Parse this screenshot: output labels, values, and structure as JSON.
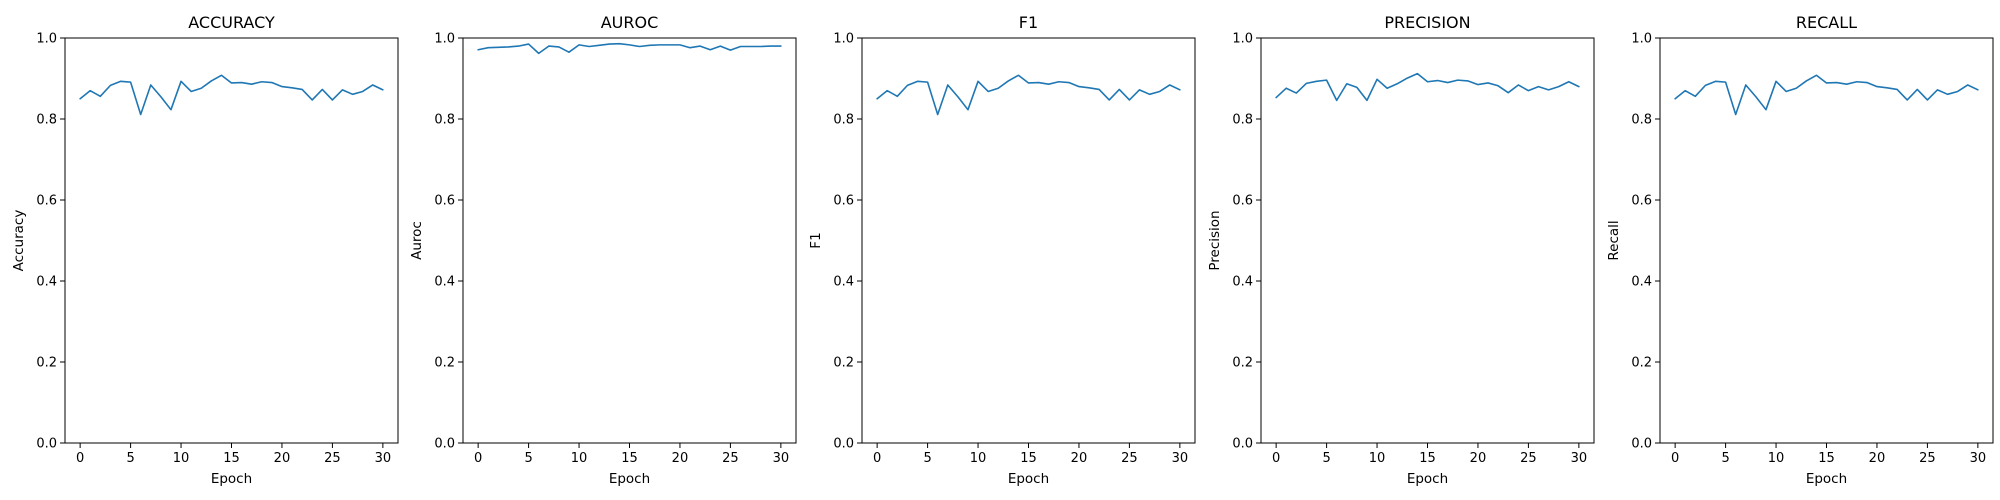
{
  "colors": {
    "series": "#1f77b4",
    "axis": "#000000",
    "background": "#ffffff"
  },
  "chart_data": [
    {
      "type": "line",
      "title": "ACCURACY",
      "xlabel": "Epoch",
      "ylabel": "Accuracy",
      "xlim": [
        -1.5,
        31.5
      ],
      "ylim": [
        0.0,
        1.0
      ],
      "xticks": [
        0,
        5,
        10,
        15,
        20,
        25,
        30
      ],
      "yticks": [
        0.0,
        0.2,
        0.4,
        0.6,
        0.8,
        1.0
      ],
      "xtick_labels": [
        "0",
        "5",
        "10",
        "15",
        "20",
        "25",
        "30"
      ],
      "ytick_labels": [
        "0.0",
        "0.2",
        "0.4",
        "0.6",
        "0.8",
        "1.0"
      ],
      "series": [
        {
          "name": "accuracy",
          "x": [
            0,
            1,
            2,
            3,
            4,
            5,
            6,
            7,
            8,
            9,
            10,
            11,
            12,
            13,
            14,
            15,
            16,
            17,
            18,
            19,
            20,
            21,
            22,
            23,
            24,
            25,
            26,
            27,
            28,
            29,
            30
          ],
          "values": [
            0.85,
            0.87,
            0.856,
            0.883,
            0.893,
            0.891,
            0.811,
            0.884,
            0.855,
            0.823,
            0.893,
            0.868,
            0.876,
            0.894,
            0.908,
            0.889,
            0.89,
            0.886,
            0.892,
            0.89,
            0.88,
            0.877,
            0.873,
            0.847,
            0.873,
            0.847,
            0.872,
            0.861,
            0.868,
            0.884,
            0.872
          ]
        }
      ]
    },
    {
      "type": "line",
      "title": "AUROC",
      "xlabel": "Epoch",
      "ylabel": "Auroc",
      "xlim": [
        -1.5,
        31.5
      ],
      "ylim": [
        0.0,
        1.0
      ],
      "xticks": [
        0,
        5,
        10,
        15,
        20,
        25,
        30
      ],
      "yticks": [
        0.0,
        0.2,
        0.4,
        0.6,
        0.8,
        1.0
      ],
      "xtick_labels": [
        "0",
        "5",
        "10",
        "15",
        "20",
        "25",
        "30"
      ],
      "ytick_labels": [
        "0.0",
        "0.2",
        "0.4",
        "0.6",
        "0.8",
        "1.0"
      ],
      "series": [
        {
          "name": "auroc",
          "x": [
            0,
            1,
            2,
            3,
            4,
            5,
            6,
            7,
            8,
            9,
            10,
            11,
            12,
            13,
            14,
            15,
            16,
            17,
            18,
            19,
            20,
            21,
            22,
            23,
            24,
            25,
            26,
            27,
            28,
            29,
            30
          ],
          "values": [
            0.971,
            0.976,
            0.977,
            0.978,
            0.98,
            0.985,
            0.962,
            0.98,
            0.978,
            0.965,
            0.983,
            0.979,
            0.982,
            0.985,
            0.986,
            0.983,
            0.979,
            0.982,
            0.983,
            0.983,
            0.983,
            0.976,
            0.98,
            0.971,
            0.98,
            0.97,
            0.979,
            0.979,
            0.979,
            0.98,
            0.98
          ]
        }
      ]
    },
    {
      "type": "line",
      "title": "F1",
      "xlabel": "Epoch",
      "ylabel": "F1",
      "xlim": [
        -1.5,
        31.5
      ],
      "ylim": [
        0.0,
        1.0
      ],
      "xticks": [
        0,
        5,
        10,
        15,
        20,
        25,
        30
      ],
      "yticks": [
        0.0,
        0.2,
        0.4,
        0.6,
        0.8,
        1.0
      ],
      "xtick_labels": [
        "0",
        "5",
        "10",
        "15",
        "20",
        "25",
        "30"
      ],
      "ytick_labels": [
        "0.0",
        "0.2",
        "0.4",
        "0.6",
        "0.8",
        "1.0"
      ],
      "series": [
        {
          "name": "f1",
          "x": [
            0,
            1,
            2,
            3,
            4,
            5,
            6,
            7,
            8,
            9,
            10,
            11,
            12,
            13,
            14,
            15,
            16,
            17,
            18,
            19,
            20,
            21,
            22,
            23,
            24,
            25,
            26,
            27,
            28,
            29,
            30
          ],
          "values": [
            0.85,
            0.87,
            0.856,
            0.883,
            0.893,
            0.891,
            0.811,
            0.884,
            0.855,
            0.823,
            0.893,
            0.868,
            0.876,
            0.894,
            0.908,
            0.889,
            0.89,
            0.886,
            0.892,
            0.89,
            0.88,
            0.877,
            0.873,
            0.847,
            0.873,
            0.847,
            0.872,
            0.861,
            0.868,
            0.884,
            0.872
          ]
        }
      ]
    },
    {
      "type": "line",
      "title": "PRECISION",
      "xlabel": "Epoch",
      "ylabel": "Precision",
      "xlim": [
        -1.5,
        31.5
      ],
      "ylim": [
        0.0,
        1.0
      ],
      "xticks": [
        0,
        5,
        10,
        15,
        20,
        25,
        30
      ],
      "yticks": [
        0.0,
        0.2,
        0.4,
        0.6,
        0.8,
        1.0
      ],
      "xtick_labels": [
        "0",
        "5",
        "10",
        "15",
        "20",
        "25",
        "30"
      ],
      "ytick_labels": [
        "0.0",
        "0.2",
        "0.4",
        "0.6",
        "0.8",
        "1.0"
      ],
      "series": [
        {
          "name": "precision",
          "x": [
            0,
            1,
            2,
            3,
            4,
            5,
            6,
            7,
            8,
            9,
            10,
            11,
            12,
            13,
            14,
            15,
            16,
            17,
            18,
            19,
            20,
            21,
            22,
            23,
            24,
            25,
            26,
            27,
            28,
            29,
            30
          ],
          "values": [
            0.853,
            0.876,
            0.864,
            0.888,
            0.893,
            0.896,
            0.846,
            0.887,
            0.878,
            0.846,
            0.898,
            0.876,
            0.887,
            0.901,
            0.912,
            0.892,
            0.895,
            0.89,
            0.896,
            0.894,
            0.885,
            0.889,
            0.882,
            0.865,
            0.884,
            0.87,
            0.88,
            0.872,
            0.88,
            0.892,
            0.88
          ]
        }
      ]
    },
    {
      "type": "line",
      "title": "RECALL",
      "xlabel": "Epoch",
      "ylabel": "Recall",
      "xlim": [
        -1.5,
        31.5
      ],
      "ylim": [
        0.0,
        1.0
      ],
      "xticks": [
        0,
        5,
        10,
        15,
        20,
        25,
        30
      ],
      "yticks": [
        0.0,
        0.2,
        0.4,
        0.6,
        0.8,
        1.0
      ],
      "xtick_labels": [
        "0",
        "5",
        "10",
        "15",
        "20",
        "25",
        "30"
      ],
      "ytick_labels": [
        "0.0",
        "0.2",
        "0.4",
        "0.6",
        "0.8",
        "1.0"
      ],
      "series": [
        {
          "name": "recall",
          "x": [
            0,
            1,
            2,
            3,
            4,
            5,
            6,
            7,
            8,
            9,
            10,
            11,
            12,
            13,
            14,
            15,
            16,
            17,
            18,
            19,
            20,
            21,
            22,
            23,
            24,
            25,
            26,
            27,
            28,
            29,
            30
          ],
          "values": [
            0.85,
            0.87,
            0.856,
            0.883,
            0.893,
            0.891,
            0.811,
            0.884,
            0.855,
            0.823,
            0.893,
            0.868,
            0.876,
            0.894,
            0.908,
            0.889,
            0.89,
            0.886,
            0.892,
            0.89,
            0.88,
            0.877,
            0.873,
            0.847,
            0.873,
            0.847,
            0.872,
            0.861,
            0.868,
            0.884,
            0.872
          ]
        }
      ]
    }
  ]
}
